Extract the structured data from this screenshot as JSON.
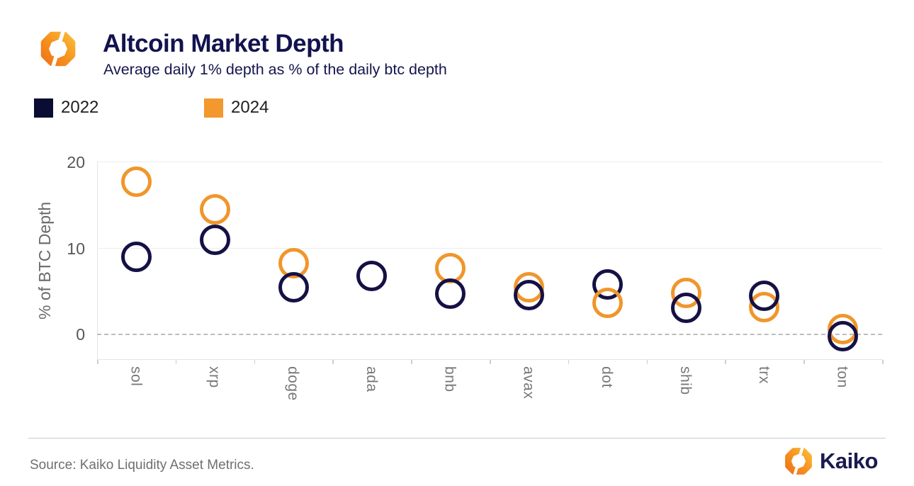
{
  "header": {
    "title": "Altcoin Market Depth",
    "subtitle": "Average daily 1% depth as % of the daily btc depth"
  },
  "legend": [
    {
      "label": "2022",
      "color": "#0a0c33"
    },
    {
      "label": "2024",
      "color": "#f2982c"
    }
  ],
  "chart_data": {
    "type": "scatter",
    "marker": "open-circle",
    "categories": [
      "sol",
      "xrp",
      "doge",
      "ada",
      "bnb",
      "avax",
      "dot",
      "shib",
      "trx",
      "ton"
    ],
    "series": [
      {
        "name": "2022",
        "color": "#151145",
        "values": [
          9.0,
          11.0,
          5.5,
          6.8,
          4.7,
          4.6,
          5.8,
          3.1,
          4.5,
          -0.2
        ]
      },
      {
        "name": "2024",
        "color": "#f0962b",
        "values": [
          17.7,
          14.5,
          8.3,
          null,
          7.7,
          5.5,
          3.7,
          4.8,
          3.2,
          0.6
        ]
      }
    ],
    "overlap_top_series": {
      "dot": "2024"
    },
    "title": "Altcoin Market Depth",
    "subtitle": "Average daily 1% depth as % of the daily btc depth",
    "xlabel": "",
    "ylabel": "% of BTC Depth",
    "yticks": [
      0,
      10,
      20
    ],
    "ylim": [
      -2.9,
      20.1
    ],
    "grid": "horizontal",
    "zero_line": "dashed",
    "legend_position": "top-left"
  },
  "footer": {
    "source": "Source: Kaiko Liquidity Asset Metrics.",
    "brand": "Kaiko"
  },
  "colors": {
    "title_navy": "#12134e",
    "navy_series": "#151145",
    "orange_series": "#f0962b",
    "gridline": "#ececec",
    "zero_line": "#bdbdbd",
    "tick_text": "#56575a",
    "axis_text": "#77787b"
  }
}
